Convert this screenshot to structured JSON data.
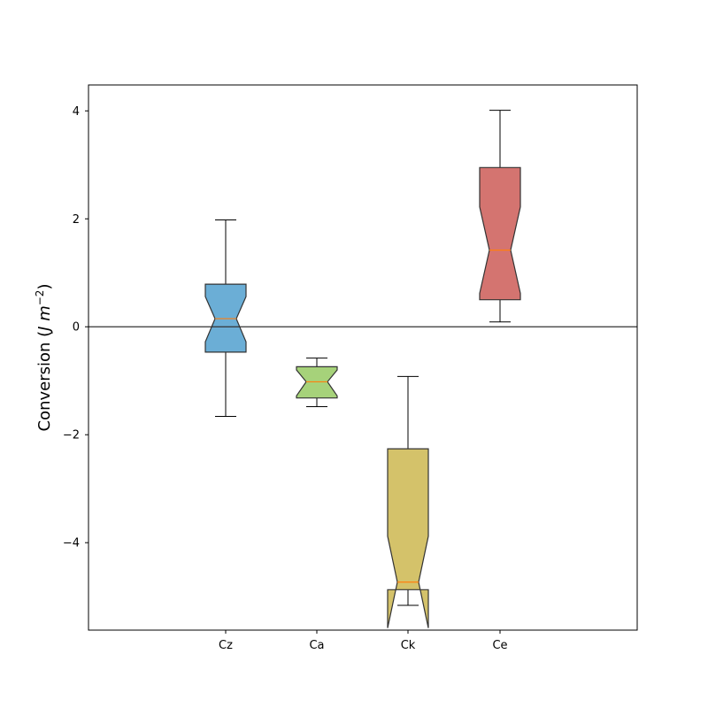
{
  "chart_data": {
    "type": "box",
    "notched": true,
    "title": "",
    "xlabel": "",
    "ylabel": "Conversion (J m−2)",
    "ylabel_parts": {
      "text": "Conversion (",
      "var": "J m",
      "sup": "−2",
      "close": ")"
    },
    "ylim": [
      -5.62,
      4.48
    ],
    "yticks": [
      {
        "value": -4,
        "label": "−4"
      },
      {
        "value": -2,
        "label": "−2"
      },
      {
        "value": 0,
        "label": "0"
      },
      {
        "value": 2,
        "label": "2"
      },
      {
        "value": 4,
        "label": "4"
      }
    ],
    "reference_line": {
      "y": 0,
      "color": "#333333"
    },
    "categories": [
      "Cz",
      "Ca",
      "Ck",
      "Ce"
    ],
    "boxes": [
      {
        "name": "Cz",
        "whislo": -1.66,
        "q1": -0.47,
        "med": 0.15,
        "q3": 0.79,
        "whishi": 1.98,
        "notch_lo": -0.28,
        "notch_hi": 0.56,
        "color": "#6baed6"
      },
      {
        "name": "Ca",
        "whislo": -1.48,
        "q1": -1.32,
        "med": -1.02,
        "q3": -0.74,
        "whishi": -0.58,
        "notch_lo": -1.28,
        "notch_hi": -0.8,
        "color": "#a6d27a"
      },
      {
        "name": "Ck",
        "whislo": -5.16,
        "q1": -4.87,
        "med": -4.73,
        "q3": -2.26,
        "whishi": -0.92,
        "notch_lo": -5.58,
        "notch_hi": -3.88,
        "color": "#d4c26a"
      },
      {
        "name": "Ce",
        "whislo": 0.09,
        "q1": 0.5,
        "med": 1.42,
        "q3": 2.95,
        "whishi": 4.01,
        "notch_lo": 0.62,
        "notch_hi": 2.22,
        "color": "#d47470"
      }
    ],
    "median_color": "#ff7f0e",
    "grid": false,
    "legend": "none"
  }
}
